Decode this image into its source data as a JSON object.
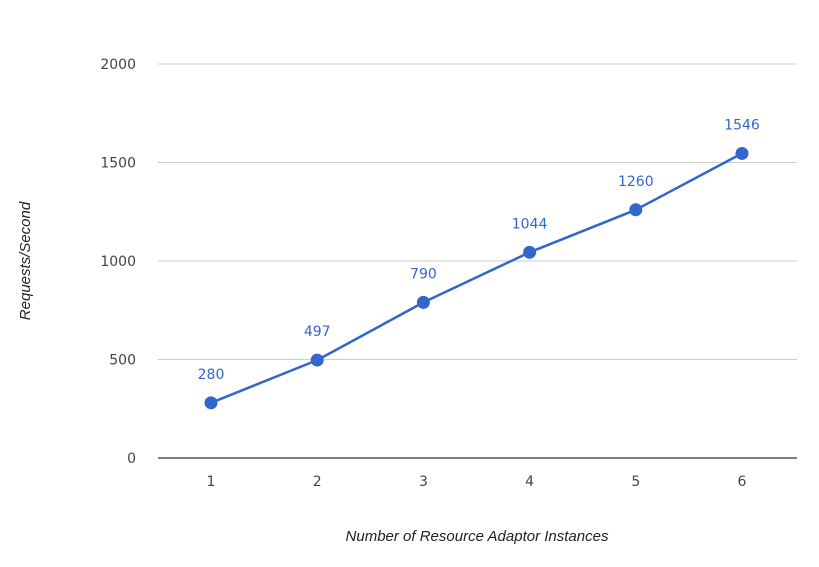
{
  "chart_data": {
    "type": "line",
    "title": "",
    "xlabel": "Number of Resource Adaptor Instances",
    "ylabel": "Requests/Second",
    "x": [
      1,
      2,
      3,
      4,
      5,
      6
    ],
    "x_tick_labels": [
      "1",
      "2",
      "3",
      "4",
      "5",
      "6"
    ],
    "series": [
      {
        "values": [
          280,
          497,
          790,
          1044,
          1260,
          1546
        ],
        "data_labels": [
          "280",
          "497",
          "790",
          "1044",
          "1260",
          "1546"
        ],
        "color": "#3366cc"
      }
    ],
    "ylim": [
      0,
      2000
    ],
    "y_ticks": [
      0,
      500,
      1000,
      1500,
      2000
    ],
    "y_tick_labels": [
      "0",
      "500",
      "1000",
      "1500",
      "2000"
    ],
    "grid": true,
    "legend": "none",
    "colors": {
      "series": "#3366cc",
      "gridline": "#cccccc",
      "baseline": "#333333"
    }
  }
}
